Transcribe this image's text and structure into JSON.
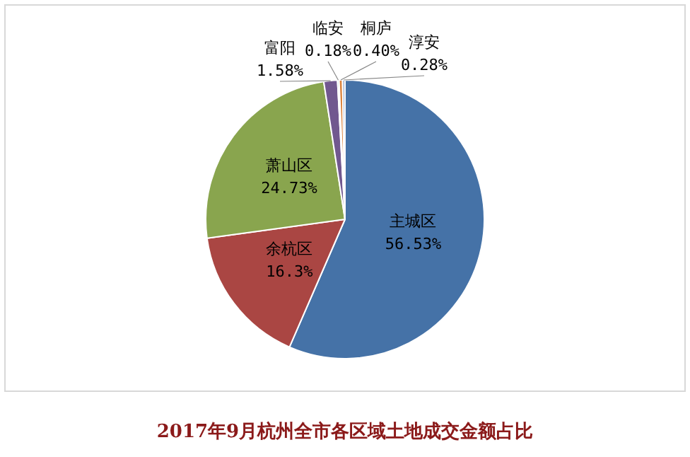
{
  "chart_data": {
    "type": "pie",
    "title": "2017年9月杭州全市各区域土地成交金额占比",
    "categories": [
      "主城区",
      "余杭区",
      "萧山区",
      "富阳",
      "临安",
      "桐庐",
      "淳安"
    ],
    "values": [
      56.53,
      16.3,
      24.73,
      1.58,
      0.18,
      0.4,
      0.28
    ],
    "value_labels": [
      "56.53%",
      "16.3%",
      "24.73%",
      "1.58%",
      "0.18%",
      "0.40%",
      "0.28%"
    ],
    "colors": [
      "#4572a7",
      "#aa4643",
      "#89a54e",
      "#71588f",
      "#4198af",
      "#db843d",
      "#93a9cf"
    ],
    "legend": false
  }
}
